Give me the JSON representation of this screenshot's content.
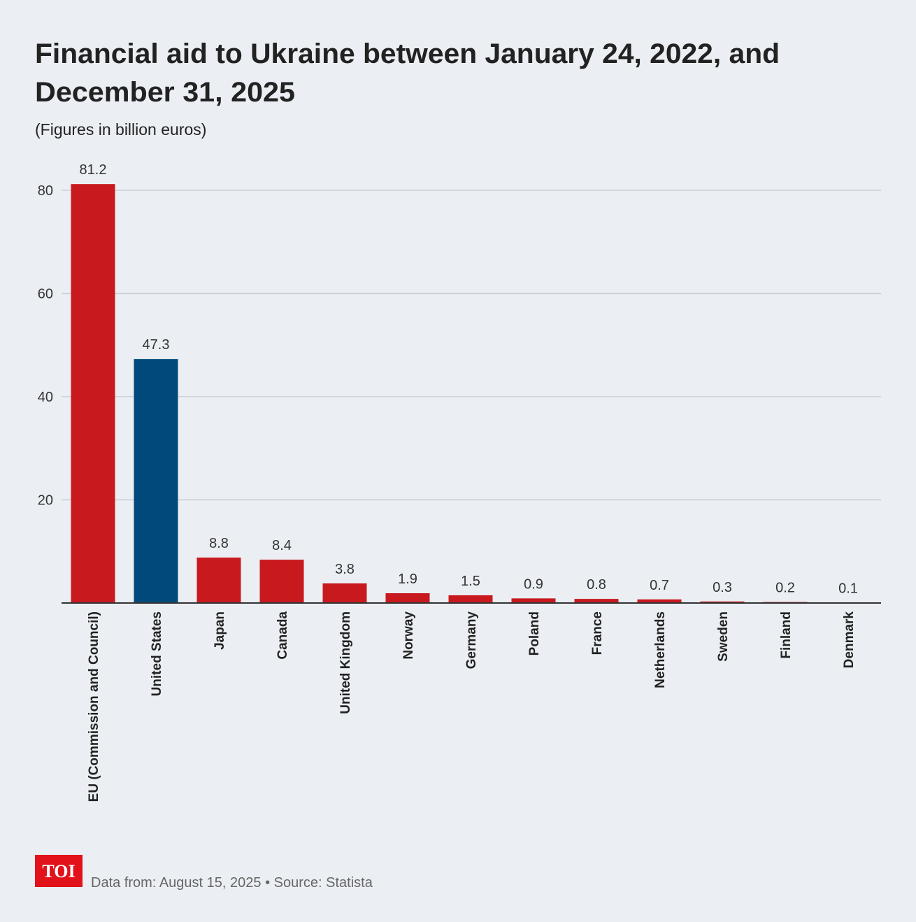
{
  "chart_data": {
    "type": "bar",
    "title": [
      "Financial aid to Ukraine between January 24, 2022, and",
      "December 31, 2025"
    ],
    "subtitle": "(Figures in billion euros)",
    "categories": [
      "EU (Commission and Council)",
      "United States",
      "Japan",
      "Canada",
      "United Kingdom",
      "Norway",
      "Germany",
      "Poland",
      "France",
      "Netherlands",
      "Sweden",
      "Finland",
      "Denmark"
    ],
    "values": [
      81.2,
      47.3,
      8.8,
      8.4,
      3.8,
      1.9,
      1.5,
      0.9,
      0.8,
      0.7,
      0.3,
      0.2,
      0.1
    ],
    "colors": [
      "#c8191f",
      "#00497a",
      "#c8191f",
      "#c8191f",
      "#c8191f",
      "#c8191f",
      "#c8191f",
      "#c8191f",
      "#c8191f",
      "#c8191f",
      "#c8191f",
      "#c8191f",
      "#c8191f"
    ],
    "ylim": [
      0,
      85
    ],
    "yticks": [
      20,
      40,
      60,
      80
    ],
    "grid": true
  },
  "footer": {
    "logo": "TOI",
    "note": "Data from: August 15, 2025",
    "separator": "•",
    "source": "Source: Statista"
  }
}
